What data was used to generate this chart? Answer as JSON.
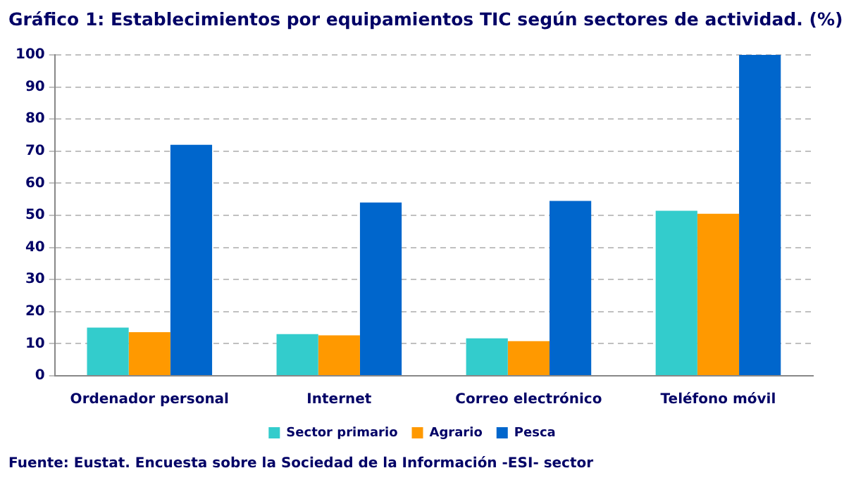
{
  "chart_data": {
    "type": "bar",
    "title": "Gráfico 1: Establecimientos por equipamientos TIC según sectores de actividad. (%)",
    "categories": [
      "Ordenador personal",
      "Internet",
      "Correo electrónico",
      "Teléfono móvil"
    ],
    "series": [
      {
        "name": "Sector primario",
        "color": "#33cccc",
        "values": [
          15,
          13,
          11.7,
          51.4
        ]
      },
      {
        "name": "Agrario",
        "color": "#ff9900",
        "values": [
          13.6,
          12.6,
          10.8,
          50.5
        ]
      },
      {
        "name": "Pesca",
        "color": "#0066cc",
        "values": [
          72,
          54,
          54.5,
          100
        ]
      }
    ],
    "ylim": [
      0,
      100
    ],
    "yticks": [
      0,
      10,
      20,
      30,
      40,
      50,
      60,
      70,
      80,
      90,
      100
    ],
    "grid": "y",
    "legend": "bottom",
    "annotations": [
      "Fuente: Eustat. Encuesta sobre la Sociedad de la Información -ESI- sector"
    ]
  }
}
